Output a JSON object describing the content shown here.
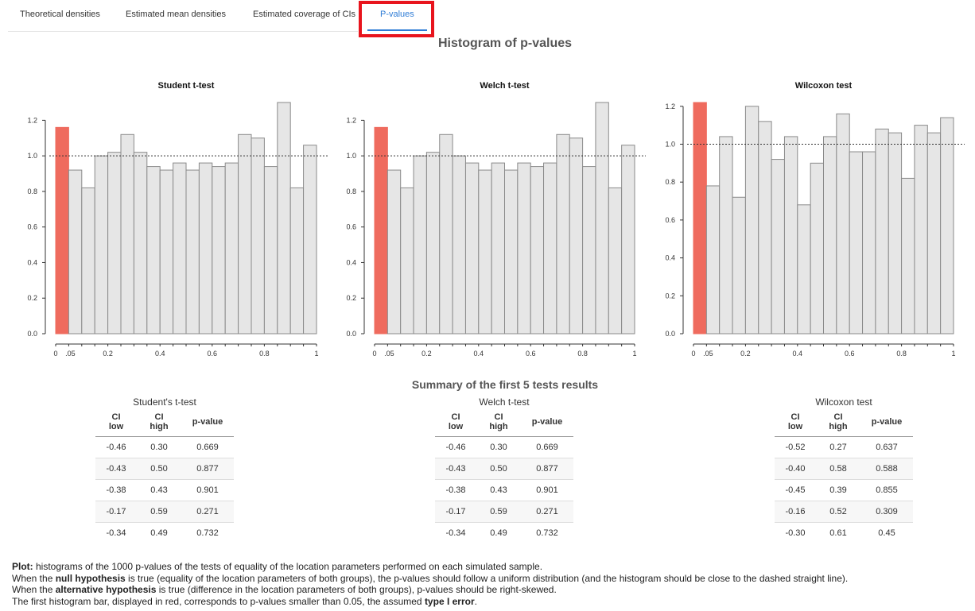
{
  "tabs": [
    {
      "label": "Theoretical densities",
      "active": false
    },
    {
      "label": "Estimated mean densities",
      "active": false
    },
    {
      "label": "Estimated coverage of CIs",
      "active": false
    },
    {
      "label": "P-values",
      "active": true
    }
  ],
  "main_title": "Histogram of p-values",
  "chart_data": [
    {
      "type": "bar",
      "title": "Student t-test",
      "bin_edges": [
        0,
        0.05,
        0.1,
        0.15,
        0.2,
        0.25,
        0.3,
        0.35,
        0.4,
        0.45,
        0.5,
        0.55,
        0.6,
        0.65,
        0.7,
        0.75,
        0.8,
        0.85,
        0.9,
        0.95,
        1.0
      ],
      "values": [
        1.16,
        0.92,
        0.82,
        1.0,
        1.02,
        1.12,
        1.02,
        0.94,
        0.92,
        0.96,
        0.92,
        0.96,
        0.94,
        0.96,
        1.12,
        1.1,
        0.94,
        1.3,
        0.82,
        1.06
      ],
      "ylim": [
        0,
        1.3
      ],
      "yticks": [
        "0.0",
        "0.2",
        "0.4",
        "0.6",
        "0.8",
        "1.0",
        "1.2"
      ],
      "xticks": [
        "0",
        ".05",
        "0.2",
        "0.4",
        "0.6",
        "0.8",
        "1"
      ],
      "reference_line": 1.0,
      "highlight_color": "#ef6b5e",
      "bar_color": "#e6e6e6"
    },
    {
      "type": "bar",
      "title": "Welch t-test",
      "bin_edges": [
        0,
        0.05,
        0.1,
        0.15,
        0.2,
        0.25,
        0.3,
        0.35,
        0.4,
        0.45,
        0.5,
        0.55,
        0.6,
        0.65,
        0.7,
        0.75,
        0.8,
        0.85,
        0.9,
        0.95,
        1.0
      ],
      "values": [
        1.16,
        0.92,
        0.82,
        1.0,
        1.02,
        1.12,
        1.0,
        0.96,
        0.92,
        0.96,
        0.92,
        0.96,
        0.94,
        0.96,
        1.12,
        1.1,
        0.94,
        1.3,
        0.82,
        1.06
      ],
      "ylim": [
        0,
        1.3
      ],
      "yticks": [
        "0.0",
        "0.2",
        "0.4",
        "0.6",
        "0.8",
        "1.0",
        "1.2"
      ],
      "xticks": [
        "0",
        ".05",
        "0.2",
        "0.4",
        "0.6",
        "0.8",
        "1"
      ],
      "reference_line": 1.0,
      "highlight_color": "#ef6b5e",
      "bar_color": "#e6e6e6"
    },
    {
      "type": "bar",
      "title": "Wilcoxon test",
      "bin_edges": [
        0,
        0.05,
        0.1,
        0.15,
        0.2,
        0.25,
        0.3,
        0.35,
        0.4,
        0.45,
        0.5,
        0.55,
        0.6,
        0.65,
        0.7,
        0.75,
        0.8,
        0.85,
        0.9,
        0.95,
        1.0
      ],
      "values": [
        1.22,
        0.78,
        1.04,
        0.72,
        1.2,
        1.12,
        0.92,
        1.04,
        0.68,
        0.9,
        1.04,
        1.16,
        0.96,
        0.96,
        1.08,
        1.06,
        0.82,
        1.1,
        1.06,
        1.14
      ],
      "ylim": [
        0,
        1.22
      ],
      "yticks": [
        "0.0",
        "0.2",
        "0.4",
        "0.6",
        "0.8",
        "1.0",
        "1.2"
      ],
      "xticks": [
        "0",
        ".05",
        "0.2",
        "0.4",
        "0.6",
        "0.8",
        "1"
      ],
      "reference_line": 1.0,
      "highlight_color": "#ef6b5e",
      "bar_color": "#e6e6e6"
    }
  ],
  "summary_title": "Summary of the first 5 tests results",
  "tables": [
    {
      "caption": "Student's t-test",
      "headers": [
        "CI low",
        "CI high",
        "p-value"
      ],
      "rows": [
        [
          "-0.46",
          "0.30",
          "0.669"
        ],
        [
          "-0.43",
          "0.50",
          "0.877"
        ],
        [
          "-0.38",
          "0.43",
          "0.901"
        ],
        [
          "-0.17",
          "0.59",
          "0.271"
        ],
        [
          "-0.34",
          "0.49",
          "0.732"
        ]
      ]
    },
    {
      "caption": "Welch t-test",
      "headers": [
        "CI low",
        "CI high",
        "p-value"
      ],
      "rows": [
        [
          "-0.46",
          "0.30",
          "0.669"
        ],
        [
          "-0.43",
          "0.50",
          "0.877"
        ],
        [
          "-0.38",
          "0.43",
          "0.901"
        ],
        [
          "-0.17",
          "0.59",
          "0.271"
        ],
        [
          "-0.34",
          "0.49",
          "0.732"
        ]
      ]
    },
    {
      "caption": "Wilcoxon test",
      "headers": [
        "CI low",
        "CI high",
        "p-value"
      ],
      "rows": [
        [
          "-0.52",
          "0.27",
          "0.637"
        ],
        [
          "-0.40",
          "0.58",
          "0.588"
        ],
        [
          "-0.45",
          "0.39",
          "0.855"
        ],
        [
          "-0.16",
          "0.52",
          "0.309"
        ],
        [
          "-0.30",
          "0.61",
          "0.45"
        ]
      ]
    }
  ],
  "notes": {
    "line1_bold": "Plot:",
    "line1_rest": " histograms of the 1000 p-values of the tests of equality of the location parameters performed on each simulated sample.",
    "line2_a": "When the ",
    "line2_bold": "null hypothesis",
    "line2_b": " is true (equality of the location parameters of both groups), the p-values should follow a uniform distribution (and the histogram should be close to the dashed straight line).",
    "line3_a": "When the ",
    "line3_bold": "alternative hypothesis",
    "line3_b": " is true (difference in the location parameters of both groups), p-values should be right-skewed.",
    "line4_a": "The first histogram bar, displayed in red, corresponds to p-values smaller than 0.05, the assumed ",
    "line4_bold": "type I error",
    "line4_b": "."
  }
}
